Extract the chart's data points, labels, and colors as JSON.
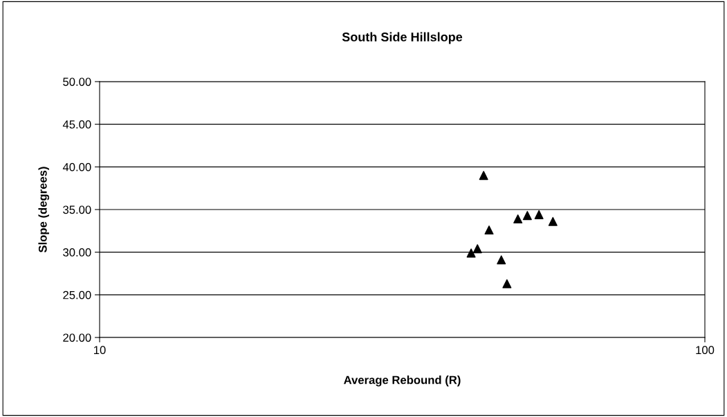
{
  "chart_data": {
    "type": "scatter",
    "title": "South Side Hillslope",
    "xlabel": "Average Rebound (R)",
    "ylabel": "Slope (degrees)",
    "log": "x",
    "xlim": [
      10,
      100
    ],
    "xticks": [
      10,
      100
    ],
    "ylim": [
      20,
      50
    ],
    "yticks": [
      {
        "value": 20,
        "label": "20.00"
      },
      {
        "value": 25,
        "label": "25.00"
      },
      {
        "value": 30,
        "label": "30.00"
      },
      {
        "value": 35,
        "label": "35.00"
      },
      {
        "value": 40,
        "label": "40.00"
      },
      {
        "value": 45,
        "label": "45.00"
      },
      {
        "value": 50,
        "label": "50.00"
      }
    ],
    "grid": "y",
    "marker": "triangle",
    "legend": false,
    "series": [
      {
        "color": "#000000",
        "x": [
          43.1,
          49.1,
          50.9,
          53.2,
          56.1,
          44.0,
          42.1,
          41.1,
          46.1,
          47.1
        ],
        "values": [
          39.0,
          33.9,
          34.3,
          34.4,
          33.6,
          32.6,
          30.4,
          29.9,
          29.1,
          26.3
        ]
      }
    ]
  }
}
